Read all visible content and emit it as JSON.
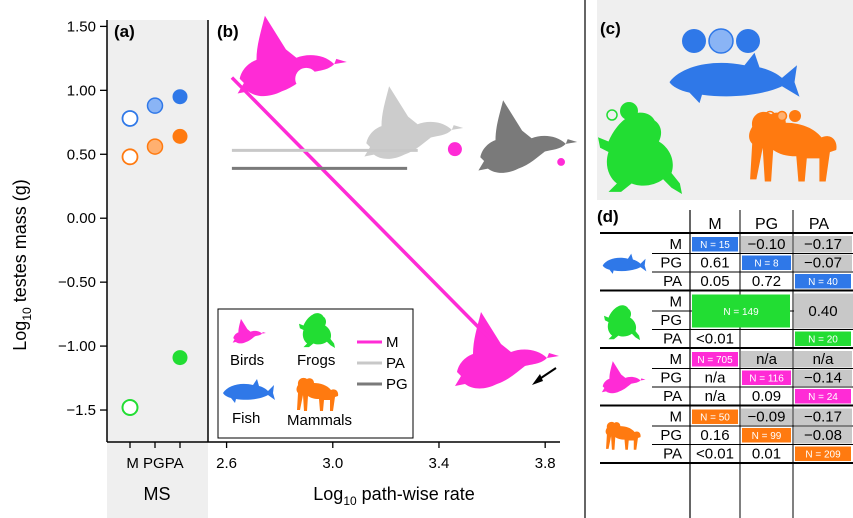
{
  "colors": {
    "fish": "#2f78e8",
    "frogs": "#22dd33",
    "birds": "#ff2bd6",
    "mammals": "#ff7a10",
    "pa_line": "#c8c8c8",
    "pg_line": "#7a7a7a",
    "panel_bg": "#efefef",
    "fish_light": "#8ab4f5",
    "mammal_light": "#ffb070"
  },
  "chart_data": [
    {
      "panel": "a",
      "type": "scatter",
      "panel_label": "(a)",
      "ylabel": "Log10 testes mass (g)",
      "ylabel_main": "Log",
      "ylabel_sub": "10",
      "ylabel_rest": " testes mass (g)",
      "xlabel": "MS",
      "x_categories": [
        "M",
        "PG",
        "PA"
      ],
      "yticks": [
        "1.50",
        "1.00",
        "0.50",
        "0.00",
        "−0.50",
        "−1.00",
        "−1.5"
      ],
      "ytick_values": [
        1.5,
        1.0,
        0.5,
        0.0,
        -0.5,
        -1.0,
        -1.5
      ],
      "ylim": [
        -1.75,
        1.55
      ],
      "points": [
        {
          "group": "Fish",
          "category": "M",
          "y": 0.78
        },
        {
          "group": "Fish",
          "category": "PG",
          "y": 0.88
        },
        {
          "group": "Fish",
          "category": "PA",
          "y": 0.95
        },
        {
          "group": "Mammals",
          "category": "M",
          "y": 0.48
        },
        {
          "group": "Mammals",
          "category": "PG",
          "y": 0.56
        },
        {
          "group": "Mammals",
          "category": "PA",
          "y": 0.64
        },
        {
          "group": "Frogs",
          "category": "M",
          "y": -1.48
        },
        {
          "group": "Frogs",
          "category": "PA",
          "y": -1.09
        }
      ]
    },
    {
      "panel": "b",
      "type": "line",
      "panel_label": "(b)",
      "xlabel": "Log10 path-wise rate",
      "xlabel_main": "Log",
      "xlabel_sub": "10",
      "xlabel_rest": " path-wise rate",
      "xticks": [
        "2.6",
        "3.0",
        "3.4",
        "3.8"
      ],
      "xtick_values": [
        2.6,
        3.0,
        3.4,
        3.8
      ],
      "xlim": [
        2.53,
        3.95
      ],
      "series": [
        {
          "name": "M",
          "x": [
            2.62,
            3.6
          ],
          "y": [
            1.1,
            -0.96
          ]
        },
        {
          "name": "PA",
          "x": [
            2.62,
            3.32
          ],
          "y": [
            0.53,
            0.53
          ]
        },
        {
          "name": "PG",
          "x": [
            2.62,
            3.28
          ],
          "y": [
            0.39,
            0.39
          ]
        }
      ],
      "bird_markers": [
        {
          "x": 2.9,
          "y": 1.09,
          "style": "open"
        },
        {
          "x": 3.46,
          "y": 0.54,
          "style": "filled"
        },
        {
          "x": 3.86,
          "y": 0.44,
          "style": "small"
        }
      ],
      "legend": {
        "placement": "bottom-left",
        "groups": [
          "Birds",
          "Frogs",
          "Fish",
          "Mammals"
        ],
        "lines": [
          "M",
          "PA",
          "PG"
        ]
      }
    },
    {
      "panel": "c",
      "type": "scatter",
      "panel_label": "(c)",
      "description_groups": [
        "Fish",
        "Frogs",
        "Mammals"
      ]
    },
    {
      "panel": "d",
      "type": "table",
      "panel_label": "(d)",
      "columns": [
        "M",
        "PG",
        "PA"
      ],
      "blocks": [
        {
          "group": "Fish",
          "rows": [
            {
              "label": "M",
              "cells": [
                "N = 15",
                "−0.10",
                "−0.17"
              ]
            },
            {
              "label": "PG",
              "cells": [
                "0.61",
                "N = 8",
                "−0.07"
              ]
            },
            {
              "label": "PA",
              "cells": [
                "0.05",
                "0.72",
                "N = 40"
              ]
            }
          ]
        },
        {
          "group": "Frogs",
          "rows": [
            {
              "label": "M",
              "cells": [
                "N = 149",
                "",
                "0.40"
              ]
            },
            {
              "label": "PG",
              "cells": [
                "",
                "",
                ""
              ]
            },
            {
              "label": "PA",
              "cells": [
                "<0.01",
                "",
                "N = 20"
              ]
            }
          ]
        },
        {
          "group": "Birds",
          "rows": [
            {
              "label": "M",
              "cells": [
                "N = 705",
                "n/a",
                "n/a"
              ]
            },
            {
              "label": "PG",
              "cells": [
                "n/a",
                "N = 116",
                "−0.14"
              ]
            },
            {
              "label": "PA",
              "cells": [
                "n/a",
                "0.09",
                "N = 24"
              ]
            }
          ]
        },
        {
          "group": "Mammals",
          "rows": [
            {
              "label": "M",
              "cells": [
                "N = 50",
                "−0.09",
                "−0.17"
              ]
            },
            {
              "label": "PG",
              "cells": [
                "0.16",
                "N = 99",
                "−0.08"
              ]
            },
            {
              "label": "PA",
              "cells": [
                "<0.01",
                "0.01",
                "N = 209"
              ]
            }
          ]
        }
      ]
    }
  ]
}
